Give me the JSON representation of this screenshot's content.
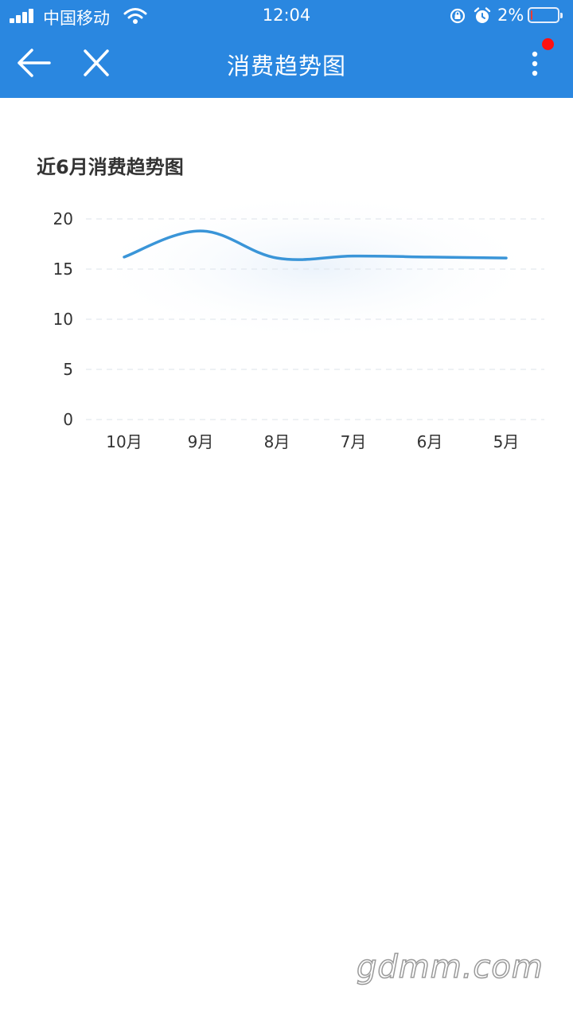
{
  "status_bar": {
    "carrier": "中国移动",
    "time": "12:04",
    "battery": "2%",
    "battery_level": 0.02,
    "icons": [
      "signal-icon",
      "wifi-icon",
      "rotation-lock-icon",
      "alarm-icon",
      "battery-icon"
    ]
  },
  "nav": {
    "title": "消费趋势图",
    "back_icon": "arrow-left-icon",
    "close_icon": "close-icon",
    "more_icon": "more-vertical-icon",
    "accent": "#2a87e0",
    "badge_color": "#ff1010"
  },
  "section": {
    "title": "近6月消费趋势图"
  },
  "chart_data": {
    "type": "line",
    "categories": [
      "10月",
      "9月",
      "8月",
      "7月",
      "6月",
      "5月"
    ],
    "values": [
      16.2,
      18.8,
      16.1,
      16.3,
      16.2,
      16.1
    ],
    "ylim": [
      0,
      20
    ],
    "yticks": [
      0,
      5,
      10,
      15,
      20
    ],
    "grid": true,
    "smooth": true,
    "line_color": "#3a95d8"
  },
  "watermark": "gdmm.com"
}
